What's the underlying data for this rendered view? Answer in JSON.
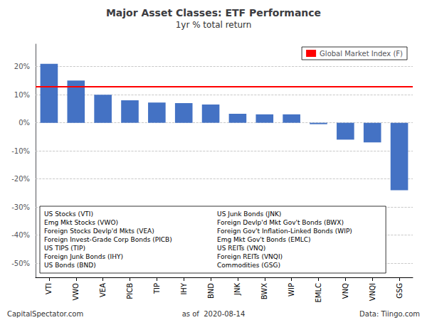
{
  "chart_data": {
    "type": "bar",
    "title": "Major Asset Classes: ETF Performance",
    "subtitle": "1yr % total return",
    "categories": [
      "VTI",
      "VWO",
      "VEA",
      "PICB",
      "TIP",
      "IHY",
      "BND",
      "JNK",
      "BWX",
      "WIP",
      "EMLC",
      "VNQ",
      "VNQI",
      "GSG"
    ],
    "values": [
      21.0,
      15.0,
      10.0,
      8.0,
      7.2,
      7.0,
      6.5,
      3.2,
      3.0,
      3.0,
      -0.5,
      -6.0,
      -7.0,
      -24.0
    ],
    "color": "#4472C4",
    "ylim": [
      -55,
      28
    ],
    "yticks": [
      {
        "value": -50,
        "label": "-50%"
      },
      {
        "value": -40,
        "label": "-40%"
      },
      {
        "value": -30,
        "label": "-30%"
      },
      {
        "value": -20,
        "label": "-20%"
      },
      {
        "value": -10,
        "label": "-10%"
      },
      {
        "value": 0,
        "label": "0%"
      },
      {
        "value": 10,
        "label": "10%"
      },
      {
        "value": 20,
        "label": "20%"
      }
    ],
    "grid": true,
    "legend": "upper right",
    "reference_line": {
      "name": "Global Market Index (F)",
      "value": 12.8,
      "color": "#FF0000"
    },
    "text_box": [
      [
        "US Stocks (VTI)",
        "Emg Mkt Stocks (VWO)",
        "Foreign Stocks Devlp'd Mkts (VEA)",
        "Foreign Invest-Grade Corp Bonds (PICB)",
        "US TIPS (TIP)",
        "Foreign Junk Bonds (IHY)",
        "US Bonds (BND)"
      ],
      [
        "US Junk Bonds (JNK)",
        "Foreign Devlp'd Mkt Gov't Bonds (BWX)",
        "Foreign Gov't Inflation-Linked Bonds (WIP)",
        "Emg Mkt Gov't Bonds (EMLC)",
        "US REITs (VNQ)",
        "Foreign REITs (VNQI)",
        "Commodities (GSG)"
      ]
    ],
    "footer": [
      "CapitalSpectator.com",
      "as of  2020-08-14",
      "Data: Tiingo.com"
    ]
  }
}
